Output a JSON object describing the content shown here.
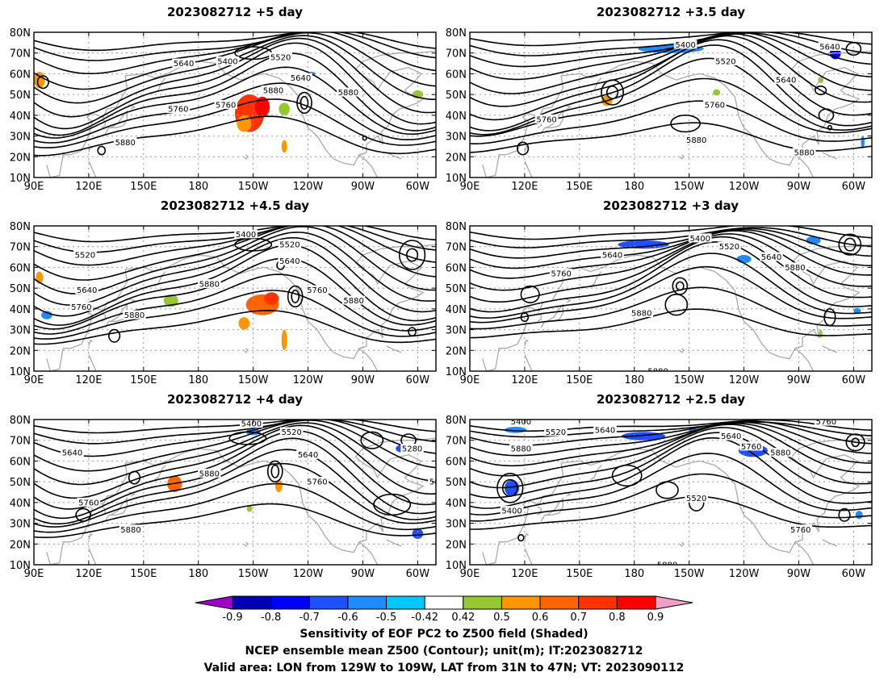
{
  "chart_data": {
    "type": "map-contour",
    "panels": [
      {
        "title": "2023082712 +5 day",
        "col": 0,
        "row": 0,
        "contour_labels": [
          "5400",
          "5520",
          "5640",
          "5640",
          "5760",
          "5760",
          "5880",
          "5880",
          "5880"
        ],
        "shading": [
          {
            "lon": -152,
            "lat": 41,
            "rx": 8,
            "ry": 9,
            "value": 0.8
          },
          {
            "lon": -145,
            "lat": 44,
            "rx": 4,
            "ry": 5,
            "value": 0.9
          },
          {
            "lon": -155,
            "lat": 36,
            "rx": 4,
            "ry": 4,
            "value": 0.6
          },
          {
            "lon": -133,
            "lat": 43,
            "rx": 3,
            "ry": 3,
            "value": 0.5
          },
          {
            "lon": -133,
            "lat": 25,
            "rx": 1.5,
            "ry": 3,
            "value": 0.6
          },
          {
            "lon": 93,
            "lat": 57,
            "rx": 3,
            "ry": 4,
            "value": 0.6
          },
          {
            "lon": -60,
            "lat": 50,
            "rx": 3,
            "ry": 2,
            "value": 0.5
          },
          {
            "lon": -118,
            "lat": 60,
            "rx": 2,
            "ry": 1,
            "value": -0.5
          }
        ]
      },
      {
        "title": "2023082712 +3.5 day",
        "col": 1,
        "row": 0,
        "contour_labels": [
          "5400",
          "5520",
          "5640",
          "5640",
          "5760",
          "5760",
          "5880",
          "5880"
        ],
        "shading": [
          {
            "lon": -160,
            "lat": 72,
            "rx": 18,
            "ry": 2,
            "value": -0.5
          },
          {
            "lon": -70,
            "lat": 70,
            "rx": 3,
            "ry": 3,
            "value": -0.7
          },
          {
            "lon": 165,
            "lat": 47,
            "rx": 3,
            "ry": 2.5,
            "value": 0.6
          },
          {
            "lon": -135,
            "lat": 51,
            "rx": 2,
            "ry": 1.5,
            "value": 0.5
          },
          {
            "lon": -55,
            "lat": 27,
            "rx": 1,
            "ry": 3,
            "value": -0.5
          },
          {
            "lon": -78,
            "lat": 57,
            "rx": 1.5,
            "ry": 1.5,
            "value": 0.5
          }
        ]
      },
      {
        "title": "2023082712 +4.5 day",
        "col": 0,
        "row": 1,
        "contour_labels": [
          "5400",
          "5520",
          "5520",
          "5640",
          "5640",
          "5760",
          "5760",
          "5880",
          "5880",
          "5880"
        ],
        "shading": [
          {
            "lon": -145,
            "lat": 42,
            "rx": 9,
            "ry": 5,
            "value": 0.7
          },
          {
            "lon": -140,
            "lat": 45,
            "rx": 4,
            "ry": 3,
            "value": 0.8
          },
          {
            "lon": -155,
            "lat": 33,
            "rx": 3,
            "ry": 3,
            "value": 0.6
          },
          {
            "lon": -133,
            "lat": 25,
            "rx": 1.5,
            "ry": 5,
            "value": 0.6
          },
          {
            "lon": 165,
            "lat": 44,
            "rx": 4,
            "ry": 3,
            "value": 0.5
          },
          {
            "lon": 93,
            "lat": 55,
            "rx": 2,
            "ry": 3,
            "value": 0.6
          },
          {
            "lon": 97,
            "lat": 37,
            "rx": 3,
            "ry": 2,
            "value": -0.5
          }
        ]
      },
      {
        "title": "2023082712 +3 day",
        "col": 1,
        "row": 1,
        "contour_labels": [
          "5400",
          "5520",
          "5640",
          "5640",
          "5760",
          "5880",
          "5880",
          "5880"
        ],
        "shading": [
          {
            "lon": -175,
            "lat": 71,
            "rx": 14,
            "ry": 2,
            "value": -0.6
          },
          {
            "lon": -82,
            "lat": 73,
            "rx": 4,
            "ry": 2,
            "value": -0.5
          },
          {
            "lon": -120,
            "lat": 64,
            "rx": 4,
            "ry": 2,
            "value": -0.5
          },
          {
            "lon": -58,
            "lat": 39,
            "rx": 2,
            "ry": 1.5,
            "value": -0.5
          },
          {
            "lon": -78,
            "lat": 28,
            "rx": 1,
            "ry": 2,
            "value": 0.5
          }
        ]
      },
      {
        "title": "2023082712 +4 day",
        "col": 0,
        "row": 2,
        "contour_labels": [
          "5400",
          "5520",
          "5640",
          "5640",
          "5760",
          "5760",
          "5880",
          "5880",
          "5280",
          "5880"
        ],
        "shading": [
          {
            "lon": 167,
            "lat": 49,
            "rx": 4,
            "ry": 4,
            "value": 0.7
          },
          {
            "lon": -136,
            "lat": 48,
            "rx": 2,
            "ry": 3,
            "value": 0.6
          },
          {
            "lon": -150,
            "lat": 74,
            "rx": 4,
            "ry": 1.5,
            "value": -0.5
          },
          {
            "lon": -60,
            "lat": 25,
            "rx": 3,
            "ry": 2.5,
            "value": -0.6
          },
          {
            "lon": -68,
            "lat": 66,
            "rx": 4,
            "ry": 2,
            "value": -0.6
          },
          {
            "lon": -152,
            "lat": 37,
            "rx": 1.5,
            "ry": 1.5,
            "value": 0.5
          }
        ]
      },
      {
        "title": "2023082712 +2.5 day",
        "col": 1,
        "row": 2,
        "contour_labels": [
          "5400",
          "5520",
          "5640",
          "5640",
          "5760",
          "5760",
          "5880",
          "5880",
          "5400",
          "5520",
          "5760",
          "5880"
        ],
        "shading": [
          {
            "lon": -175,
            "lat": 72,
            "rx": 12,
            "ry": 2,
            "value": -0.6
          },
          {
            "lon": 115,
            "lat": 75,
            "rx": 6,
            "ry": 1.5,
            "value": -0.5
          },
          {
            "lon": -115,
            "lat": 65,
            "rx": 8,
            "ry": 3,
            "value": -0.6
          },
          {
            "lon": 113,
            "lat": 47,
            "rx": 4,
            "ry": 4,
            "value": -0.6
          },
          {
            "lon": -57,
            "lat": 34,
            "rx": 2,
            "ry": 2,
            "value": -0.5
          },
          {
            "lon": -148,
            "lat": 75,
            "rx": 2,
            "ry": 1,
            "value": -0.5
          }
        ]
      }
    ],
    "lon_range": [
      90,
      310
    ],
    "lat_range": [
      10,
      80
    ],
    "x_ticks": [
      {
        "lon": 90,
        "label": "90E"
      },
      {
        "lon": 120,
        "label": "120E"
      },
      {
        "lon": 150,
        "label": "150E"
      },
      {
        "lon": 180,
        "label": "180"
      },
      {
        "lon": 210,
        "label": "150W"
      },
      {
        "lon": 240,
        "label": "120W"
      },
      {
        "lon": 270,
        "label": "90W"
      },
      {
        "lon": 300,
        "label": "60W"
      }
    ],
    "y_ticks": [
      {
        "lat": 10,
        "label": "10N"
      },
      {
        "lat": 20,
        "label": "20N"
      },
      {
        "lat": 30,
        "label": "30N"
      },
      {
        "lat": 40,
        "label": "40N"
      },
      {
        "lat": 50,
        "label": "50N"
      },
      {
        "lat": 60,
        "label": "60N"
      },
      {
        "lat": 70,
        "label": "70N"
      },
      {
        "lat": 80,
        "label": "80N"
      }
    ],
    "colorbar": {
      "labels": [
        "-0.9",
        "-0.8",
        "-0.7",
        "-0.6",
        "-0.5",
        "-0.42",
        "0.42",
        "0.5",
        "0.6",
        "0.7",
        "0.8",
        "0.9"
      ],
      "colors": [
        "#a000c8",
        "#0000b4",
        "#0000ff",
        "#1e50ff",
        "#1e8cff",
        "#00c8ff",
        "#ffffff",
        "#96c832",
        "#ff9600",
        "#ff6400",
        "#ff3200",
        "#ff0000",
        "#f0a0c8"
      ],
      "bins": [
        {
          "min": -0.9,
          "max": -0.8,
          "color": "#0000b4"
        },
        {
          "min": -0.8,
          "max": -0.7,
          "color": "#0000ff"
        },
        {
          "min": -0.7,
          "max": -0.6,
          "color": "#1e50ff"
        },
        {
          "min": -0.6,
          "max": -0.5,
          "color": "#1e8cff"
        },
        {
          "min": -0.5,
          "max": -0.42,
          "color": "#00c8ff"
        },
        {
          "min": 0.42,
          "max": 0.5,
          "color": "#96c832"
        },
        {
          "min": 0.5,
          "max": 0.6,
          "color": "#ff9600"
        },
        {
          "min": 0.6,
          "max": 0.7,
          "color": "#ff6400"
        },
        {
          "min": 0.7,
          "max": 0.8,
          "color": "#ff3200"
        },
        {
          "min": 0.8,
          "max": 0.9,
          "color": "#ff0000"
        }
      ],
      "low_color": "#a000c8",
      "high_color": "#f0a0c8"
    },
    "caption": [
      "Sensitivity of EOF PC2 to Z500 field (Shaded)",
      "NCEP ensemble mean Z500 (Contour); unit(m); IT:2023082712",
      "Valid area: LON from 129W to 109W, LAT from 31N to 47N; VT: 2023090112"
    ],
    "contour_color": "#000000",
    "coastline_color": "#aaaaaa",
    "grid_color": "#999999"
  }
}
